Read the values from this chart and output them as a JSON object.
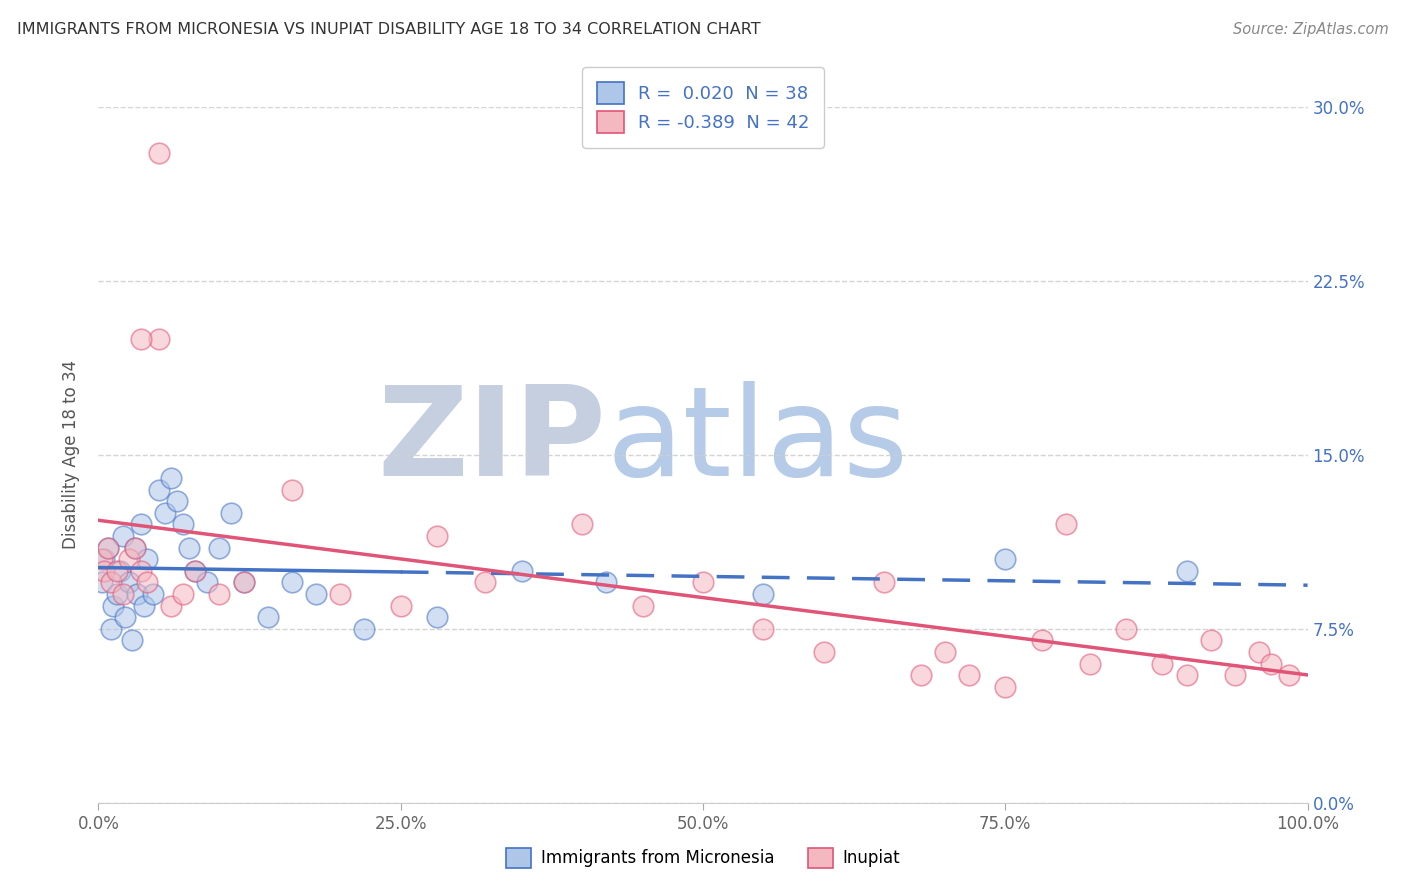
{
  "title": "IMMIGRANTS FROM MICRONESIA VS INUPIAT DISABILITY AGE 18 TO 34 CORRELATION CHART",
  "source_text": "Source: ZipAtlas.com",
  "ylabel": "Disability Age 18 to 34",
  "legend_label_1": "Immigrants from Micronesia",
  "legend_label_2": "Inupiat",
  "R1": 0.02,
  "N1": 38,
  "R2": -0.389,
  "N2": 42,
  "color1": "#aec6e8",
  "color2": "#f4b8c1",
  "line_color1": "#4472c4",
  "line_color2": "#e05577",
  "xlim": [
    0.0,
    100.0
  ],
  "ylim": [
    0.0,
    30.0
  ],
  "yticks": [
    0.0,
    7.5,
    15.0,
    22.5,
    30.0
  ],
  "xticks": [
    0.0,
    25.0,
    50.0,
    75.0,
    100.0
  ],
  "xtick_labels": [
    "0.0%",
    "25.0%",
    "50.0%",
    "75.0%",
    "100.0%"
  ],
  "ytick_labels": [
    "0.0%",
    "7.5%",
    "15.0%",
    "22.5%",
    "30.0%"
  ],
  "blue_x": [
    0.3,
    0.5,
    0.8,
    1.0,
    1.2,
    1.5,
    1.8,
    2.0,
    2.2,
    2.5,
    2.8,
    3.0,
    3.2,
    3.5,
    3.8,
    4.0,
    4.5,
    5.0,
    5.5,
    6.0,
    6.5,
    7.0,
    7.5,
    8.0,
    9.0,
    10.0,
    11.0,
    12.0,
    14.0,
    16.0,
    18.0,
    22.0,
    28.0,
    35.0,
    42.0,
    55.0,
    75.0,
    90.0
  ],
  "blue_y": [
    9.5,
    10.5,
    11.0,
    7.5,
    8.5,
    9.0,
    10.0,
    11.5,
    8.0,
    9.5,
    7.0,
    11.0,
    9.0,
    12.0,
    8.5,
    10.5,
    9.0,
    13.5,
    12.5,
    14.0,
    13.0,
    12.0,
    11.0,
    10.0,
    9.5,
    11.0,
    12.5,
    9.5,
    8.0,
    9.5,
    9.0,
    7.5,
    8.0,
    10.0,
    9.5,
    9.0,
    10.5,
    10.0
  ],
  "pink_x": [
    0.3,
    0.5,
    0.8,
    1.0,
    1.5,
    2.0,
    2.5,
    3.0,
    3.5,
    4.0,
    5.0,
    6.0,
    7.0,
    8.0,
    10.0,
    12.0,
    16.0,
    20.0,
    25.0,
    28.0,
    32.0,
    40.0,
    45.0,
    50.0,
    55.0,
    60.0,
    65.0,
    68.0,
    70.0,
    72.0,
    75.0,
    78.0,
    80.0,
    82.0,
    85.0,
    88.0,
    90.0,
    92.0,
    94.0,
    96.0,
    97.0,
    98.5
  ],
  "pink_y": [
    10.5,
    10.0,
    11.0,
    9.5,
    10.0,
    9.0,
    10.5,
    11.0,
    10.0,
    9.5,
    20.0,
    8.5,
    9.0,
    10.0,
    9.0,
    9.5,
    13.5,
    9.0,
    8.5,
    11.5,
    9.5,
    12.0,
    8.5,
    9.5,
    7.5,
    6.5,
    9.5,
    5.5,
    6.5,
    5.5,
    5.0,
    7.0,
    12.0,
    6.0,
    7.5,
    6.0,
    5.5,
    7.0,
    5.5,
    6.5,
    6.0,
    5.5
  ],
  "pink_outlier_x": [
    5.0
  ],
  "pink_outlier_y": [
    28.0
  ],
  "pink_outlier2_x": [
    3.5
  ],
  "pink_outlier2_y": [
    20.0
  ],
  "watermark_zip": "ZIP",
  "watermark_atlas": "atlas",
  "watermark_color_zip": "#c5cfe0",
  "watermark_color_atlas": "#b5cbe8",
  "background_color": "#ffffff",
  "grid_color": "#d0d0d0"
}
